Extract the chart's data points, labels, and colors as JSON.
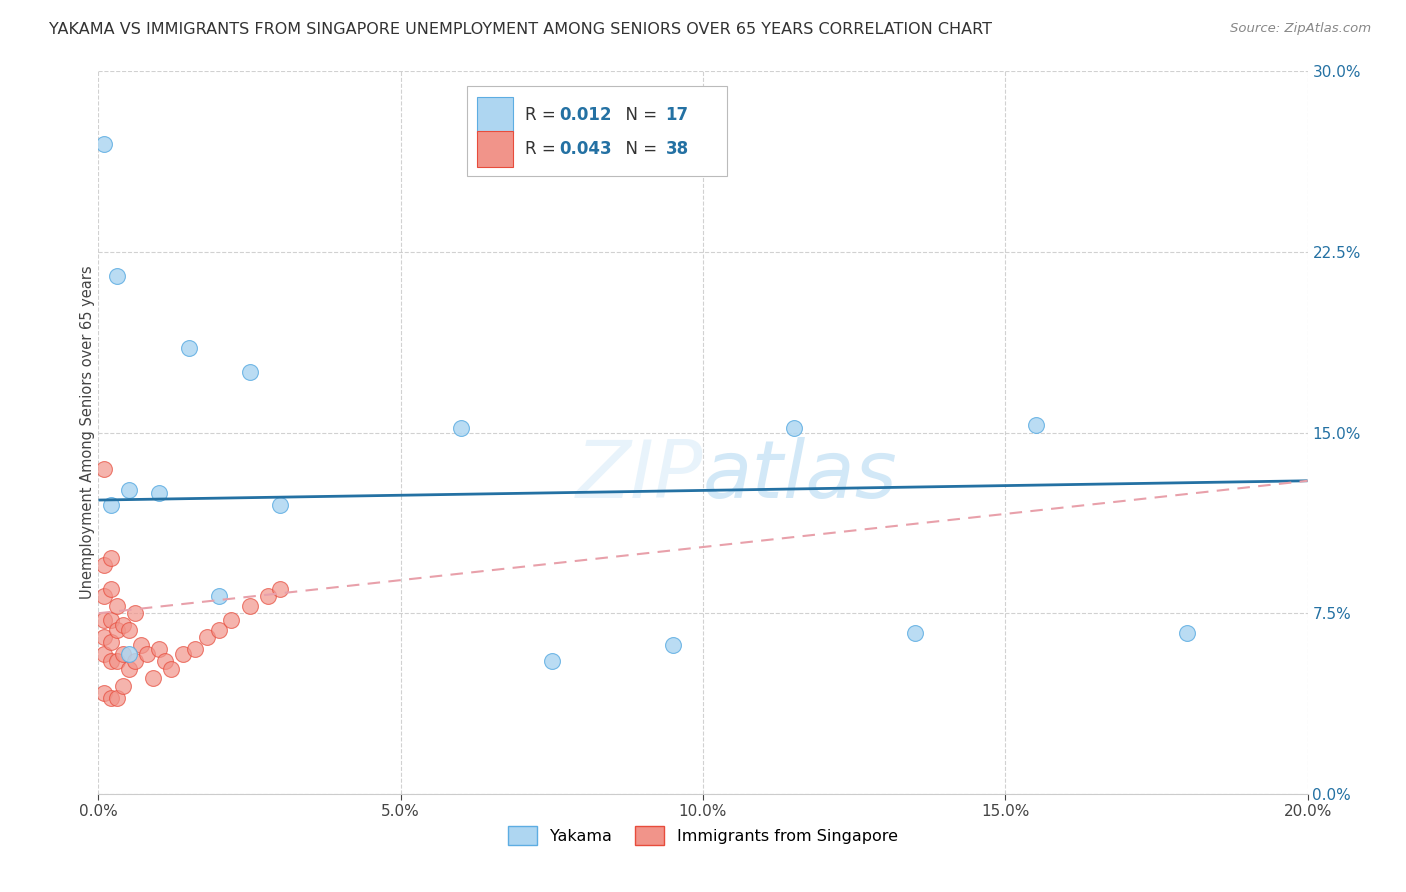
{
  "title": "YAKAMA VS IMMIGRANTS FROM SINGAPORE UNEMPLOYMENT AMONG SENIORS OVER 65 YEARS CORRELATION CHART",
  "source": "Source: ZipAtlas.com",
  "ylabel": "Unemployment Among Seniors over 65 years",
  "yakama_color": "#aed6f1",
  "yakama_edge": "#5dade2",
  "singapore_color": "#f1948a",
  "singapore_edge": "#e74c3c",
  "trend_yakama_color": "#2471a3",
  "trend_singapore_color": "#e8a0aa",
  "R_yakama": "0.012",
  "N_yakama": "17",
  "R_singapore": "0.043",
  "N_singapore": "38",
  "legend_number_color": "#2471a3",
  "xlim": [
    0.0,
    0.2
  ],
  "ylim": [
    0.0,
    0.3
  ],
  "xticks": [
    0.0,
    0.05,
    0.1,
    0.15,
    0.2
  ],
  "xticklabels": [
    "0.0%",
    "5.0%",
    "10.0%",
    "15.0%",
    "20.0%"
  ],
  "yticks": [
    0.0,
    0.075,
    0.15,
    0.225,
    0.3
  ],
  "yticklabels": [
    "0.0%",
    "7.5%",
    "15.0%",
    "22.5%",
    "30.0%"
  ],
  "yakama_x": [
    0.001,
    0.003,
    0.015,
    0.025,
    0.002,
    0.005,
    0.01,
    0.03,
    0.06,
    0.095,
    0.115,
    0.155,
    0.18,
    0.005,
    0.02,
    0.075,
    0.135
  ],
  "yakama_y": [
    0.27,
    0.215,
    0.185,
    0.175,
    0.12,
    0.126,
    0.125,
    0.12,
    0.152,
    0.062,
    0.152,
    0.153,
    0.067,
    0.058,
    0.082,
    0.055,
    0.067
  ],
  "singapore_x": [
    0.001,
    0.001,
    0.001,
    0.001,
    0.001,
    0.001,
    0.001,
    0.002,
    0.002,
    0.002,
    0.002,
    0.002,
    0.002,
    0.003,
    0.003,
    0.003,
    0.003,
    0.004,
    0.004,
    0.004,
    0.005,
    0.005,
    0.006,
    0.006,
    0.007,
    0.008,
    0.009,
    0.01,
    0.011,
    0.012,
    0.014,
    0.016,
    0.018,
    0.02,
    0.022,
    0.025,
    0.028,
    0.03
  ],
  "singapore_y": [
    0.135,
    0.095,
    0.082,
    0.072,
    0.065,
    0.058,
    0.042,
    0.098,
    0.085,
    0.072,
    0.063,
    0.055,
    0.04,
    0.078,
    0.068,
    0.055,
    0.04,
    0.07,
    0.058,
    0.045,
    0.068,
    0.052,
    0.075,
    0.055,
    0.062,
    0.058,
    0.048,
    0.06,
    0.055,
    0.052,
    0.058,
    0.06,
    0.065,
    0.068,
    0.072,
    0.078,
    0.082,
    0.085
  ]
}
